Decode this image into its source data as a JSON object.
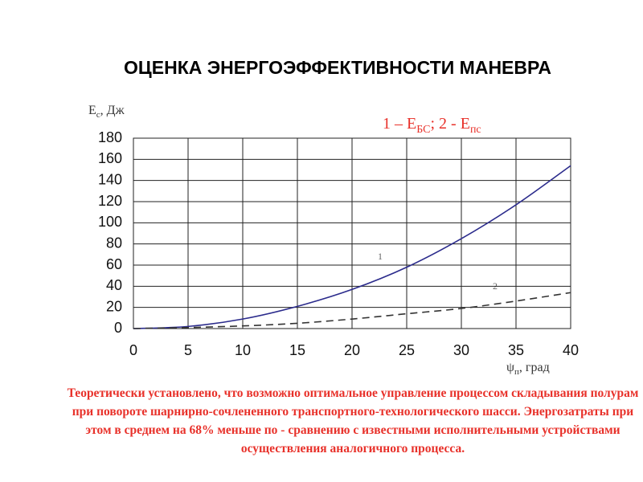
{
  "chart_data": {
    "type": "line",
    "title": "ОЦЕНКА ЭНЕРГОЭФФЕКТИВНОСТИ МАНЕВРА",
    "ylabel": {
      "main": "E",
      "sub": "с",
      "rest": ", Дж"
    },
    "xlabel": {
      "main": "ψ",
      "sub": "п",
      "rest": ", град"
    },
    "legend_note": {
      "a": "1 – E",
      "a_sub": "БС",
      "b": "; 2 - E",
      "b_sub": "пс"
    },
    "x": [
      0,
      5,
      10,
      15,
      20,
      25,
      30,
      35,
      40
    ],
    "series": [
      {
        "name": "1",
        "color": "#2b2b8c",
        "dash": false,
        "values": [
          0,
          2,
          9,
          21,
          37,
          58,
          85,
          117,
          154
        ]
      },
      {
        "name": "2",
        "color": "#333333",
        "dash": true,
        "values": [
          0,
          1,
          2.5,
          5,
          9,
          14,
          19,
          26,
          34
        ]
      }
    ],
    "xlim": [
      0,
      40
    ],
    "xticks": [
      0,
      5,
      10,
      15,
      20,
      25,
      30,
      35,
      40
    ],
    "ylim": [
      0,
      180
    ],
    "yticks": [
      0,
      20,
      40,
      60,
      80,
      100,
      120,
      140,
      160,
      180
    ],
    "grid": true,
    "note": "Теоретически установлено, что возможно оптимальное управление процессом складывания полурам при повороте шарнирно-сочлененного транспортного-технологического шасси. Энергозатраты при этом в среднем на 68% меньше по - сравнению с известными исполнительными устройствами осуществления аналогичного процесса."
  }
}
